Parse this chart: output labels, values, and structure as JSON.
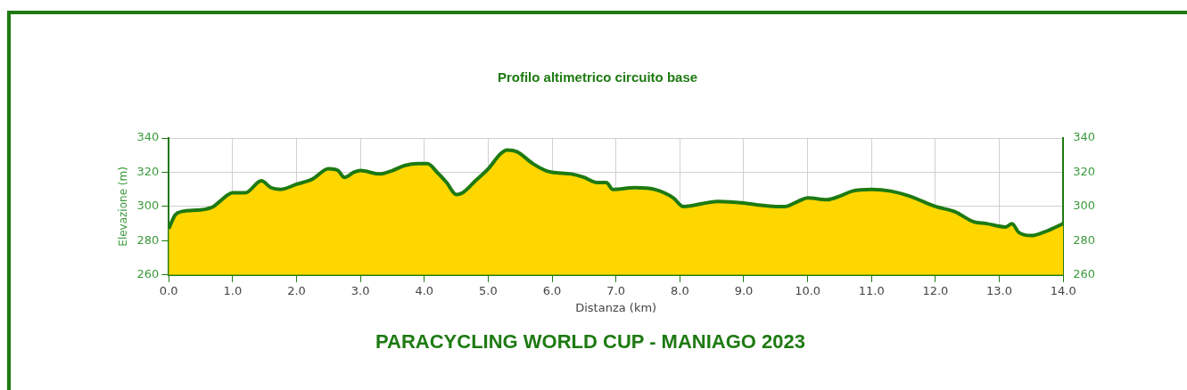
{
  "chart_data": {
    "type": "area",
    "title": "Profilo altimetrico circuito base",
    "xlabel": "Distanza (km)",
    "ylabel": "Elevazione (m)",
    "annotations": [
      "PARACYCLING WORLD CUP - MANIAGO 2023"
    ],
    "x": [
      0,
      0.1,
      0.2,
      0.5,
      0.7,
      0.8,
      1.0,
      1.2,
      1.45,
      1.6,
      1.75,
      2.0,
      2.25,
      2.5,
      2.65,
      2.75,
      2.9,
      3.0,
      3.3,
      3.5,
      3.7,
      3.9,
      4.05,
      4.2,
      4.35,
      4.5,
      4.6,
      4.8,
      5.0,
      5.2,
      5.3,
      5.45,
      5.7,
      5.9,
      6.0,
      6.3,
      6.5,
      6.7,
      6.85,
      6.95,
      7.3,
      7.6,
      7.9,
      8.05,
      8.6,
      9.0,
      9.2,
      9.5,
      9.65,
      9.85,
      10.0,
      10.3,
      10.5,
      10.7,
      11.0,
      11.3,
      11.6,
      12.0,
      12.3,
      12.6,
      12.8,
      13.1,
      13.2,
      13.3,
      13.5,
      13.7,
      14.0
    ],
    "series": [
      {
        "color": "#ffd700",
        "values": [
          287,
          295,
          297,
          298,
          300,
          303,
          308,
          308,
          315,
          311,
          310,
          313,
          316,
          322,
          321,
          317,
          320,
          321,
          319,
          321,
          324,
          325,
          325,
          320,
          314,
          307,
          308,
          315,
          322,
          331,
          333,
          332,
          325,
          321,
          320,
          319,
          317,
          314,
          314,
          310,
          311,
          310,
          305,
          300,
          303,
          302,
          301,
          300,
          300,
          303,
          305,
          304,
          306,
          309,
          310,
          309,
          306,
          300,
          297,
          291,
          290,
          288,
          290,
          285,
          283,
          285,
          290
        ]
      }
    ],
    "xlim": [
      0,
      14
    ],
    "xticks": [
      {
        "value": 0,
        "label": "0.0"
      },
      {
        "value": 1,
        "label": "1.0"
      },
      {
        "value": 2,
        "label": "2.0"
      },
      {
        "value": 3,
        "label": "3.0"
      },
      {
        "value": 4,
        "label": "4.0"
      },
      {
        "value": 5,
        "label": "5.0"
      },
      {
        "value": 6,
        "label": "6.0"
      },
      {
        "value": 7,
        "label": "7.0"
      },
      {
        "value": 8,
        "label": "8.0"
      },
      {
        "value": 9,
        "label": "9.0"
      },
      {
        "value": 10,
        "label": "10.0"
      },
      {
        "value": 11,
        "label": "11.0"
      },
      {
        "value": 12,
        "label": "12.0"
      },
      {
        "value": 13,
        "label": "13.0"
      },
      {
        "value": 14,
        "label": "14.0"
      }
    ],
    "ylim": [
      260,
      340
    ],
    "yticks": [
      260,
      280,
      300,
      320,
      340
    ],
    "y2lim": [
      260,
      340
    ],
    "y2ticks": [
      260,
      280,
      300,
      320,
      340
    ],
    "grid": true,
    "legend": false,
    "marker": "none",
    "line_style": "solid"
  }
}
